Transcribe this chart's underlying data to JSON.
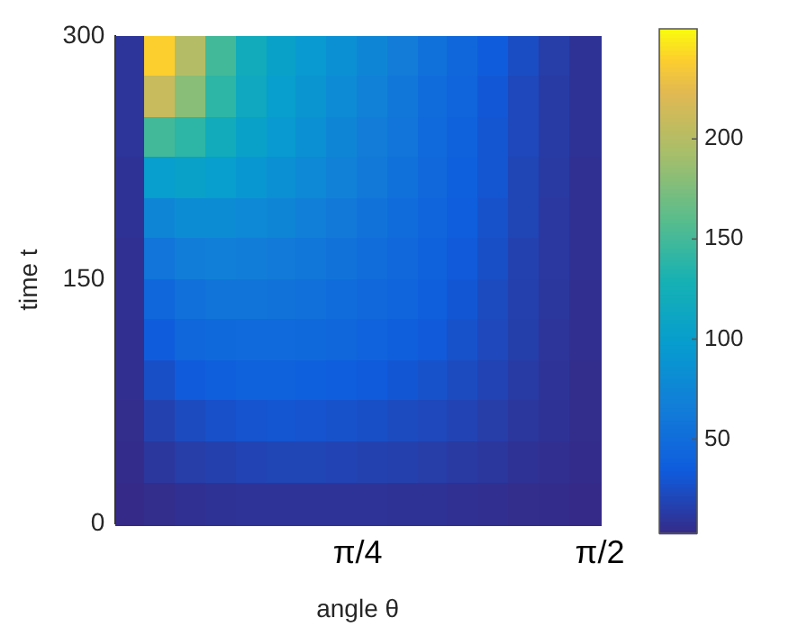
{
  "chart_data": {
    "type": "heatmap",
    "xlabel": "angle θ",
    "ylabel": "time t",
    "xlim": [
      0,
      1.5708
    ],
    "xticks": [
      {
        "value": 0.7854,
        "label": "π/4"
      },
      {
        "value": 1.5708,
        "label": "π/2"
      }
    ],
    "ylim": [
      0,
      300
    ],
    "yticks": [
      0,
      150,
      300
    ],
    "clim": [
      3,
      255
    ],
    "cticks": [
      50,
      100,
      150,
      200
    ],
    "cells": [
      [
        10,
        240,
        200,
        150,
        120,
        105,
        95,
        85,
        75,
        65,
        55,
        45,
        35,
        25,
        15,
        8
      ],
      [
        10,
        210,
        180,
        140,
        115,
        100,
        90,
        80,
        70,
        60,
        50,
        42,
        32,
        22,
        14,
        8
      ],
      [
        10,
        150,
        140,
        120,
        105,
        95,
        85,
        75,
        65,
        58,
        48,
        40,
        30,
        22,
        14,
        8
      ],
      [
        8,
        100,
        105,
        100,
        92,
        85,
        78,
        70,
        62,
        55,
        46,
        38,
        30,
        20,
        13,
        7
      ],
      [
        8,
        75,
        82,
        82,
        78,
        74,
        68,
        62,
        56,
        50,
        43,
        36,
        28,
        20,
        12,
        7
      ],
      [
        7,
        58,
        66,
        68,
        66,
        63,
        60,
        56,
        51,
        46,
        40,
        33,
        26,
        18,
        12,
        7
      ],
      [
        7,
        45,
        54,
        57,
        57,
        56,
        54,
        50,
        46,
        42,
        37,
        31,
        24,
        17,
        11,
        6
      ],
      [
        6,
        35,
        44,
        47,
        48,
        48,
        47,
        44,
        41,
        37,
        33,
        28,
        22,
        16,
        10,
        6
      ],
      [
        6,
        26,
        34,
        37,
        39,
        39,
        38,
        36,
        34,
        31,
        28,
        24,
        19,
        14,
        9,
        5
      ],
      [
        5,
        18,
        24,
        27,
        29,
        30,
        29,
        28,
        26,
        24,
        22,
        19,
        15,
        11,
        8,
        5
      ],
      [
        4,
        11,
        15,
        17,
        19,
        20,
        20,
        19,
        18,
        17,
        15,
        13,
        11,
        8,
        6,
        4
      ],
      [
        3,
        5,
        7,
        8,
        9,
        9,
        9,
        9,
        9,
        8,
        8,
        7,
        6,
        5,
        4,
        3
      ]
    ],
    "grid": false,
    "legend": false
  }
}
